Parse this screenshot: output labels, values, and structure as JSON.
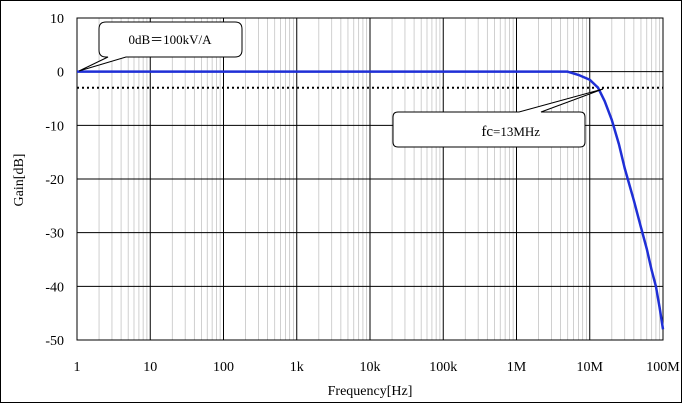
{
  "chart_data": {
    "type": "line",
    "xscale": "log",
    "xlim": [
      1,
      100000000
    ],
    "ylim": [
      -50,
      10
    ],
    "xlabel": "Frequency[Hz]",
    "ylabel": "Gain[dB]",
    "x_tick_values": [
      1,
      10,
      100,
      1000,
      10000,
      100000,
      1000000,
      10000000,
      100000000
    ],
    "x_tick_labels": [
      "1",
      "10",
      "100",
      "1k",
      "10k",
      "100k",
      "1M",
      "10M",
      "100M"
    ],
    "y_tick_values": [
      10,
      0,
      -10,
      -20,
      -30,
      -40,
      -50
    ],
    "y_tick_labels": [
      "10",
      "0",
      "-10",
      "-20",
      "-30",
      "-40",
      "-50"
    ],
    "grid": true,
    "series": [
      {
        "color": "#1f2fd6",
        "x": [
          1,
          1000000,
          5000000,
          7000000,
          10000000,
          13000000,
          16000000,
          20000000,
          25000000,
          30000000,
          40000000,
          50000000,
          60000000,
          70000000,
          80000000,
          90000000,
          100000000
        ],
        "y": [
          0,
          0,
          0,
          -0.6,
          -1.5,
          -3,
          -5.5,
          -9,
          -13.5,
          -18,
          -24,
          -29,
          -33,
          -37,
          -40,
          -44,
          -48
        ]
      }
    ],
    "reference_line": {
      "y": -3,
      "style": "dotted",
      "color": "#000000"
    },
    "annotations": [
      {
        "text": "0dB＝100kV/A",
        "points_to": {
          "x": 1,
          "y": 0
        }
      },
      {
        "text": "fc ",
        "text2": "=13MHz",
        "points_to": {
          "x": 13000000,
          "y": -3
        }
      }
    ]
  }
}
